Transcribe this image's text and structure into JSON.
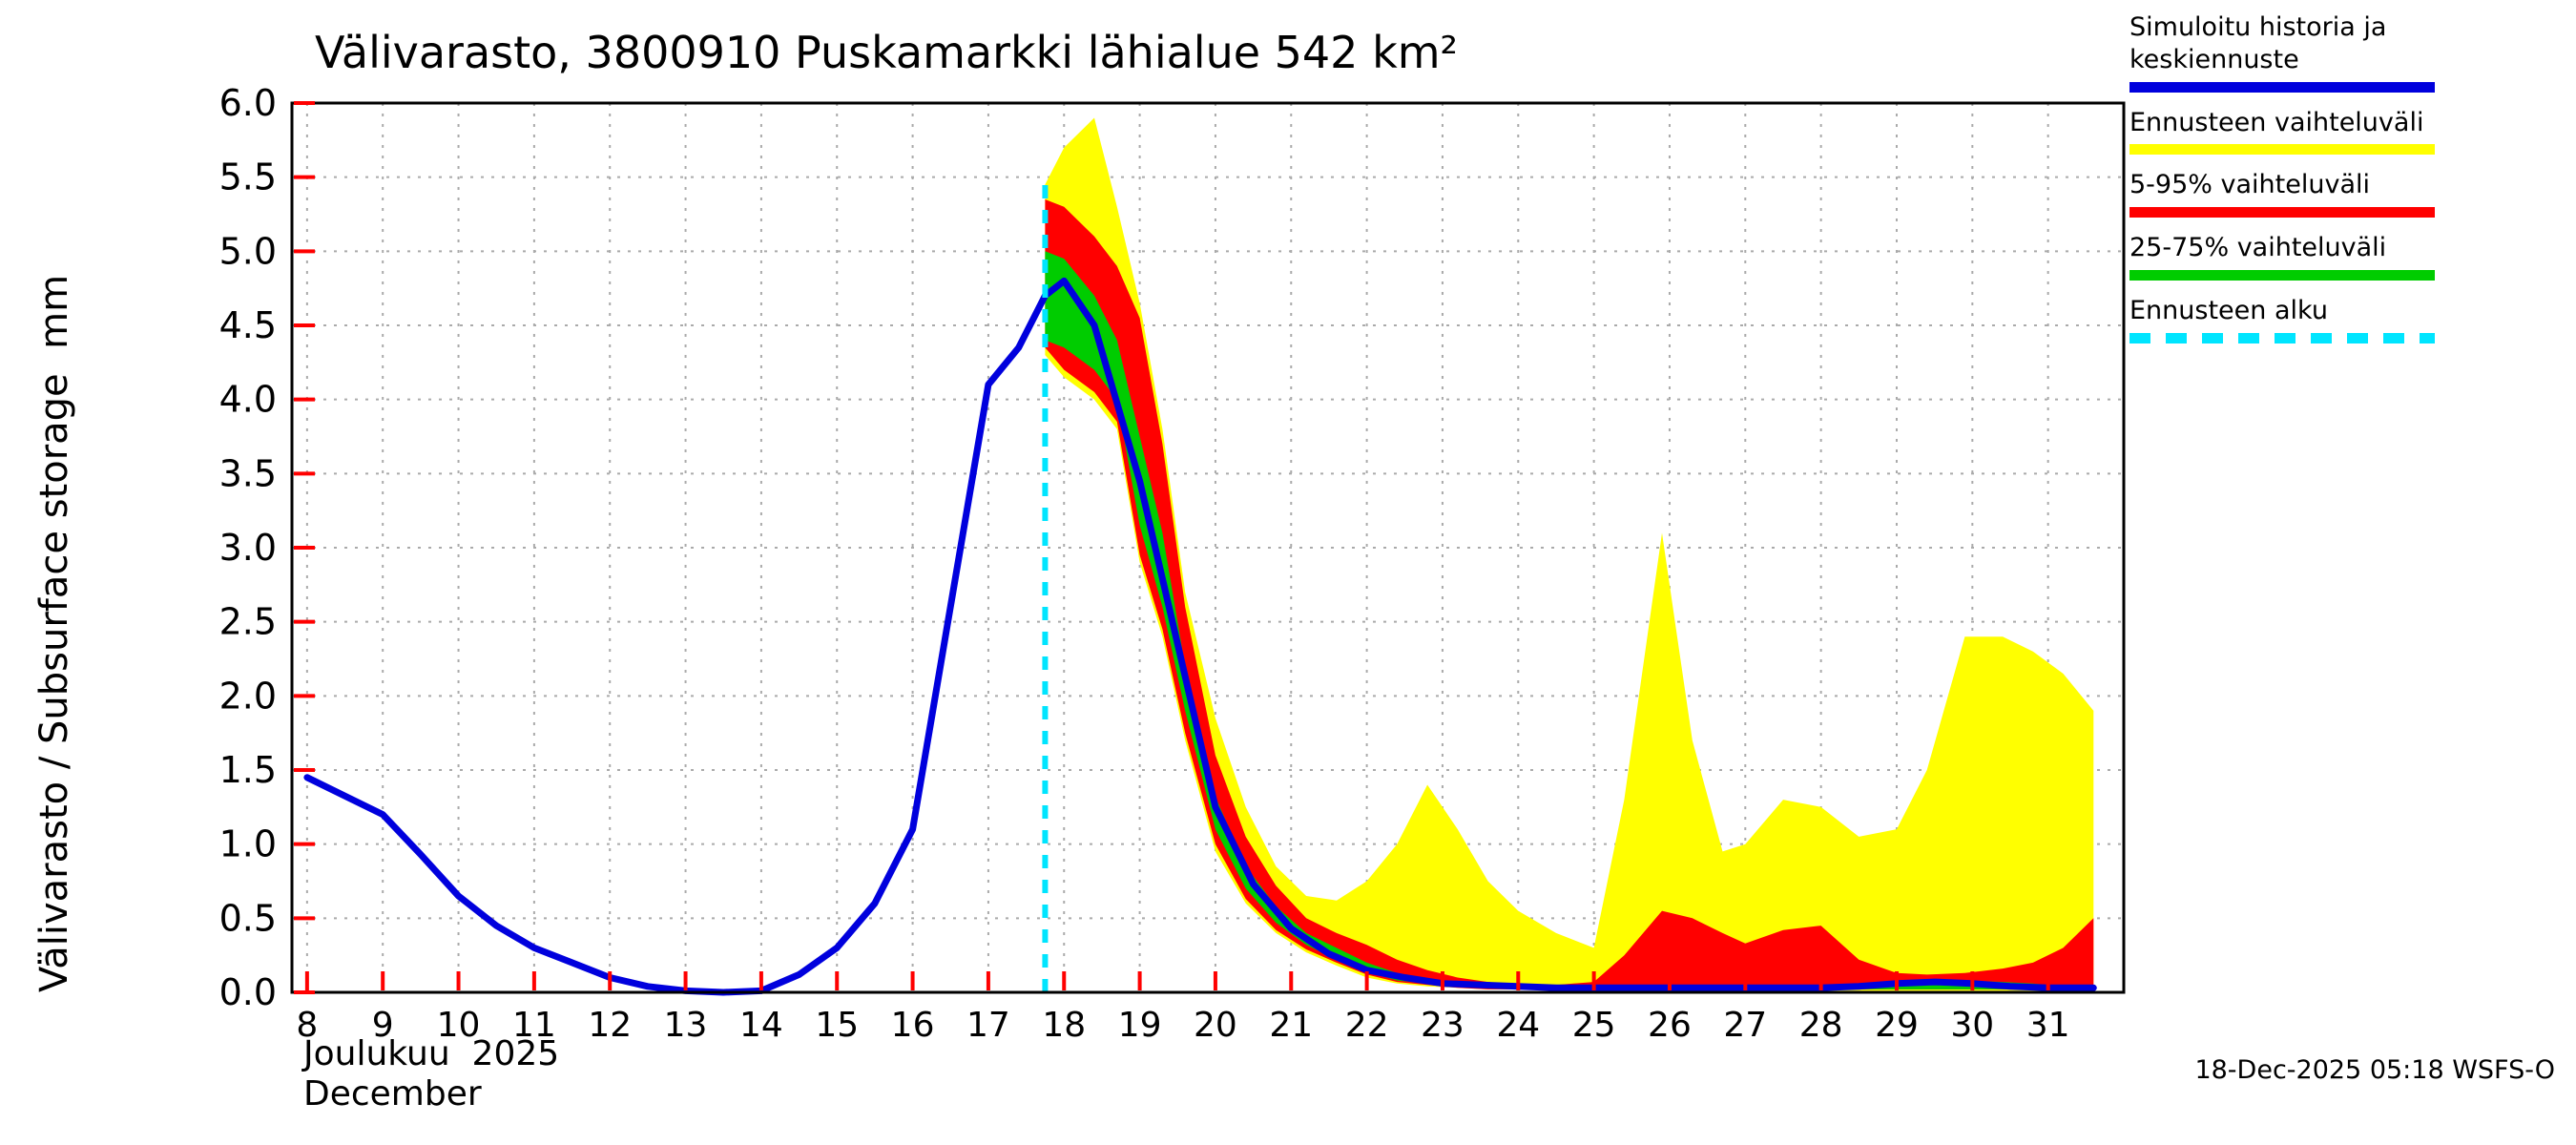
{
  "title": "Välivarasto, 3800910 Puskamarkki lähialue 542 km²",
  "y_axis_label": "Välivarasto / Subsurface storage  mm",
  "x_axis_label_fi": "Joulukuu  2025",
  "x_axis_label_en": "December",
  "footer_timestamp": "18-Dec-2025 05:18 WSFS-O",
  "legend": {
    "items": [
      {
        "label": "Simuloitu historia ja keskiennuste",
        "color": "#0000dd",
        "style": "solid"
      },
      {
        "label": "Ennusteen vaihteluväli",
        "color": "#ffff00",
        "style": "solid"
      },
      {
        "label": "5-95% vaihteluväli",
        "color": "#ff0000",
        "style": "solid"
      },
      {
        "label": "25-75% vaihteluväli",
        "color": "#00cc00",
        "style": "solid"
      },
      {
        "label": "Ennusteen alku",
        "color": "#00e5ff",
        "style": "dashed"
      }
    ]
  },
  "chart_data": {
    "type": "line",
    "title": "Välivarasto, 3800910 Puskamarkki lähialue 542 km²",
    "ylabel": "Välivarasto / Subsurface storage  mm",
    "xlabel": "Joulukuu 2025 / December",
    "ylim": [
      0,
      6.0
    ],
    "xlim": [
      7.8,
      32.0
    ],
    "grid": true,
    "legend_position": "top-right",
    "forecast_start": {
      "x": 17.75,
      "top": 5.5
    },
    "colors": {
      "median": "#0000dd",
      "range": "#ffff00",
      "p5_95": "#ff0000",
      "p25_75": "#00cc00",
      "forecast_start": "#00e5ff",
      "grid": "#aaaaaa",
      "frame": "#000000",
      "tick": "#ff0000"
    },
    "yticks": [
      {
        "value": 0.0,
        "label": "0.0"
      },
      {
        "value": 0.5,
        "label": "0.5"
      },
      {
        "value": 1.0,
        "label": "1.0"
      },
      {
        "value": 1.5,
        "label": "1.5"
      },
      {
        "value": 2.0,
        "label": "2.0"
      },
      {
        "value": 2.5,
        "label": "2.5"
      },
      {
        "value": 3.0,
        "label": "3.0"
      },
      {
        "value": 3.5,
        "label": "3.5"
      },
      {
        "value": 4.0,
        "label": "4.0"
      },
      {
        "value": 4.5,
        "label": "4.5"
      },
      {
        "value": 5.0,
        "label": "5.0"
      },
      {
        "value": 5.5,
        "label": "5.5"
      },
      {
        "value": 6.0,
        "label": "6.0"
      }
    ],
    "xticks": [
      {
        "value": 8,
        "label": "8"
      },
      {
        "value": 9,
        "label": "9"
      },
      {
        "value": 10,
        "label": "10"
      },
      {
        "value": 11,
        "label": "11"
      },
      {
        "value": 12,
        "label": "12"
      },
      {
        "value": 13,
        "label": "13"
      },
      {
        "value": 14,
        "label": "14"
      },
      {
        "value": 15,
        "label": "15"
      },
      {
        "value": 16,
        "label": "16"
      },
      {
        "value": 17,
        "label": "17"
      },
      {
        "value": 18,
        "label": "18"
      },
      {
        "value": 19,
        "label": "19"
      },
      {
        "value": 20,
        "label": "20"
      },
      {
        "value": 21,
        "label": "21"
      },
      {
        "value": 22,
        "label": "22"
      },
      {
        "value": 23,
        "label": "23"
      },
      {
        "value": 24,
        "label": "24"
      },
      {
        "value": 25,
        "label": "25"
      },
      {
        "value": 26,
        "label": "26"
      },
      {
        "value": 27,
        "label": "27"
      },
      {
        "value": 28,
        "label": "28"
      },
      {
        "value": 29,
        "label": "29"
      },
      {
        "value": 30,
        "label": "30"
      },
      {
        "value": 31,
        "label": "31"
      }
    ],
    "series": {
      "history_x": [
        8,
        8.6,
        9,
        9.5,
        10,
        10.5,
        11,
        11.5,
        12,
        12.5,
        13,
        13.5,
        14,
        14.5,
        15,
        15.5,
        16,
        16.5,
        17,
        17.4,
        17.75
      ],
      "history_y": [
        1.45,
        1.3,
        1.2,
        0.93,
        0.65,
        0.45,
        0.3,
        0.2,
        0.1,
        0.04,
        0.01,
        0.0,
        0.01,
        0.12,
        0.3,
        0.6,
        1.1,
        2.6,
        4.1,
        4.35,
        4.7
      ],
      "median_x": [
        18.0,
        18.4,
        19,
        19.5,
        20,
        20.5,
        21,
        21.5,
        22,
        22.5,
        23,
        23.5,
        24,
        24.5,
        25,
        25.5,
        26,
        26.5,
        27,
        27.5,
        28,
        28.5,
        29,
        29.5,
        30,
        30.5,
        31,
        31.6
      ],
      "median_y": [
        4.8,
        4.5,
        3.45,
        2.35,
        1.25,
        0.73,
        0.43,
        0.26,
        0.15,
        0.1,
        0.06,
        0.05,
        0.04,
        0.03,
        0.03,
        0.03,
        0.03,
        0.03,
        0.03,
        0.03,
        0.03,
        0.04,
        0.06,
        0.07,
        0.06,
        0.04,
        0.03,
        0.03
      ],
      "band_x": [
        17.75,
        18.0,
        18.4,
        18.7,
        19.0,
        19.3,
        19.6,
        20.0,
        20.4,
        20.8,
        21.2,
        21.6,
        22.0,
        22.4,
        22.8,
        23.2,
        23.6,
        24.0,
        24.5,
        25.0,
        25.4,
        25.9,
        26.3,
        26.7,
        27.0,
        27.5,
        28.0,
        28.5,
        29.0,
        29.4,
        29.9,
        30.4,
        30.8,
        31.2,
        31.6
      ],
      "yellow_upper": [
        5.45,
        5.7,
        5.9,
        5.3,
        4.65,
        3.8,
        2.7,
        1.85,
        1.25,
        0.85,
        0.65,
        0.62,
        0.75,
        1.0,
        1.4,
        1.1,
        0.75,
        0.55,
        0.4,
        0.3,
        1.3,
        3.1,
        1.7,
        0.95,
        1.0,
        1.3,
        1.25,
        1.05,
        1.1,
        1.5,
        2.4,
        2.4,
        2.3,
        2.15,
        1.9
      ],
      "yellow_lower": [
        4.3,
        4.15,
        4.0,
        3.8,
        2.9,
        2.4,
        1.7,
        0.95,
        0.6,
        0.4,
        0.27,
        0.18,
        0.1,
        0.06,
        0.04,
        0.03,
        0.02,
        0.02,
        0.01,
        0.01,
        0.01,
        0.01,
        0.01,
        0.01,
        0.01,
        0.01,
        0.01,
        0.01,
        0.01,
        0.01,
        0.01,
        0.01,
        0.01,
        0.01,
        0.01
      ],
      "red_upper": [
        5.35,
        5.3,
        5.1,
        4.9,
        4.55,
        3.7,
        2.6,
        1.6,
        1.05,
        0.72,
        0.5,
        0.4,
        0.32,
        0.22,
        0.15,
        0.1,
        0.07,
        0.05,
        0.05,
        0.07,
        0.25,
        0.55,
        0.5,
        0.4,
        0.33,
        0.42,
        0.45,
        0.22,
        0.13,
        0.12,
        0.13,
        0.16,
        0.2,
        0.3,
        0.5
      ],
      "red_lower": [
        4.35,
        4.2,
        4.05,
        3.85,
        2.95,
        2.45,
        1.75,
        1.0,
        0.63,
        0.42,
        0.29,
        0.2,
        0.12,
        0.07,
        0.05,
        0.03,
        0.02,
        0.02,
        0.02,
        0.02,
        0.02,
        0.02,
        0.02,
        0.02,
        0.02,
        0.02,
        0.02,
        0.02,
        0.02,
        0.02,
        0.02,
        0.02,
        0.02,
        0.02,
        0.02
      ],
      "green_upper": [
        5.0,
        4.95,
        4.7,
        4.4,
        3.75,
        3.1,
        2.2,
        1.32,
        0.85,
        0.58,
        0.4,
        0.3,
        0.2,
        0.13,
        0.09,
        0.06,
        0.05,
        0.04,
        0.03,
        0.03,
        0.04,
        0.05,
        0.05,
        0.04,
        0.04,
        0.05,
        0.05,
        0.06,
        0.08,
        0.09,
        0.08,
        0.07,
        0.06,
        0.04,
        0.04
      ],
      "green_lower": [
        4.4,
        4.35,
        4.2,
        4.0,
        3.15,
        2.6,
        1.9,
        1.1,
        0.7,
        0.47,
        0.32,
        0.22,
        0.14,
        0.08,
        0.06,
        0.04,
        0.03,
        0.02,
        0.02,
        0.02,
        0.02,
        0.02,
        0.02,
        0.02,
        0.02,
        0.02,
        0.02,
        0.02,
        0.02,
        0.02,
        0.02,
        0.02,
        0.02,
        0.02,
        0.02
      ]
    }
  }
}
